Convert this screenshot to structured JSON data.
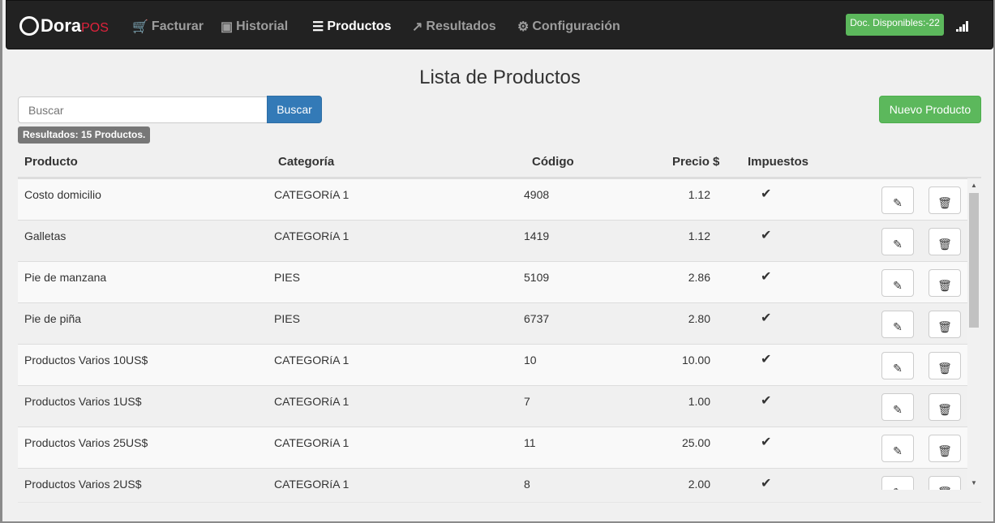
{
  "brand": {
    "name": "Dora",
    "suffix": "POS"
  },
  "nav": [
    {
      "label": "Facturar",
      "icon": "cart-icon"
    },
    {
      "label": "Historial",
      "icon": "money-icon"
    },
    {
      "label": "Productos",
      "icon": "list-icon",
      "active": true
    },
    {
      "label": "Resultados",
      "icon": "chart-line-icon"
    },
    {
      "label": "Configuración",
      "icon": "gear-icon"
    }
  ],
  "docs_badge": "Doc. Disponibles:-22",
  "page_title": "Lista de Productos",
  "search": {
    "placeholder": "Buscar",
    "button": "Buscar"
  },
  "new_button": "Nuevo Producto",
  "results_label": "Resultados: 15 Productos.",
  "table": {
    "headers": [
      "Producto",
      "Categoría",
      "Código",
      "Precio $",
      "Impuestos"
    ],
    "rows": [
      {
        "producto": "Costo domicilio",
        "categoria": "CATEGORíA 1",
        "codigo": "4908",
        "precio": "1.12",
        "impuestos": true
      },
      {
        "producto": "Galletas",
        "categoria": "CATEGORíA 1",
        "codigo": "1419",
        "precio": "1.12",
        "impuestos": true
      },
      {
        "producto": "Pie de manzana",
        "categoria": "PIES",
        "codigo": "5109",
        "precio": "2.86",
        "impuestos": true
      },
      {
        "producto": "Pie de piña",
        "categoria": "PIES",
        "codigo": "6737",
        "precio": "2.80",
        "impuestos": true
      },
      {
        "producto": "Productos Varios 10US$",
        "categoria": "CATEGORíA 1",
        "codigo": "10",
        "precio": "10.00",
        "impuestos": true
      },
      {
        "producto": "Productos Varios 1US$",
        "categoria": "CATEGORíA 1",
        "codigo": "7",
        "precio": "1.00",
        "impuestos": true
      },
      {
        "producto": "Productos Varios 25US$",
        "categoria": "CATEGORíA 1",
        "codigo": "11",
        "precio": "25.00",
        "impuestos": true
      },
      {
        "producto": "Productos Varios 2US$",
        "categoria": "CATEGORíA 1",
        "codigo": "8",
        "precio": "2.00",
        "impuestos": true
      }
    ]
  },
  "colors": {
    "navbar": "#222222",
    "success": "#5cb85c",
    "primary": "#337ab7",
    "brand_accent": "#e0223c"
  }
}
